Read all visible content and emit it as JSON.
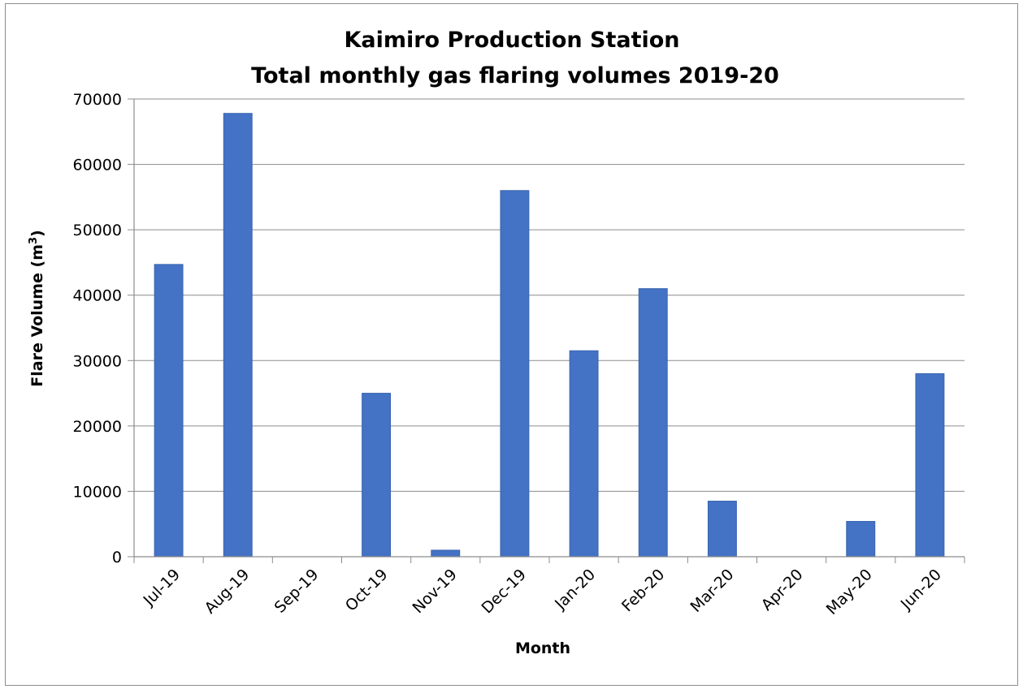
{
  "chart_data": {
    "type": "bar",
    "title": "Kaimiro Production Station",
    "subtitle": "Total monthly gas flaring volumes 2019-20",
    "xlabel": "Month",
    "ylabel": "Flare Volume (m³)",
    "ylabel_base": "Flare Volume (m",
    "ylabel_sup": "3",
    "ylabel_end": ")",
    "ylim": [
      0,
      70000
    ],
    "yticks": [
      "0",
      "10000",
      "20000",
      "30000",
      "40000",
      "50000",
      "60000",
      "70000"
    ],
    "grid": true,
    "legend": "none",
    "categories": [
      "Jul-19",
      "Aug-19",
      "Sep-19",
      "Oct-19",
      "Nov-19",
      "Dec-19",
      "Jan-20",
      "Feb-20",
      "Mar-20",
      "Apr-20",
      "May-20",
      "Jun-20"
    ],
    "values": [
      44700,
      67800,
      0,
      25000,
      1000,
      56000,
      31500,
      41000,
      8500,
      0,
      5400,
      28000
    ],
    "bar_color": "#4472c4",
    "bar_edge_color": "#3a65b0",
    "gridline_color": "#8c8c8c"
  }
}
